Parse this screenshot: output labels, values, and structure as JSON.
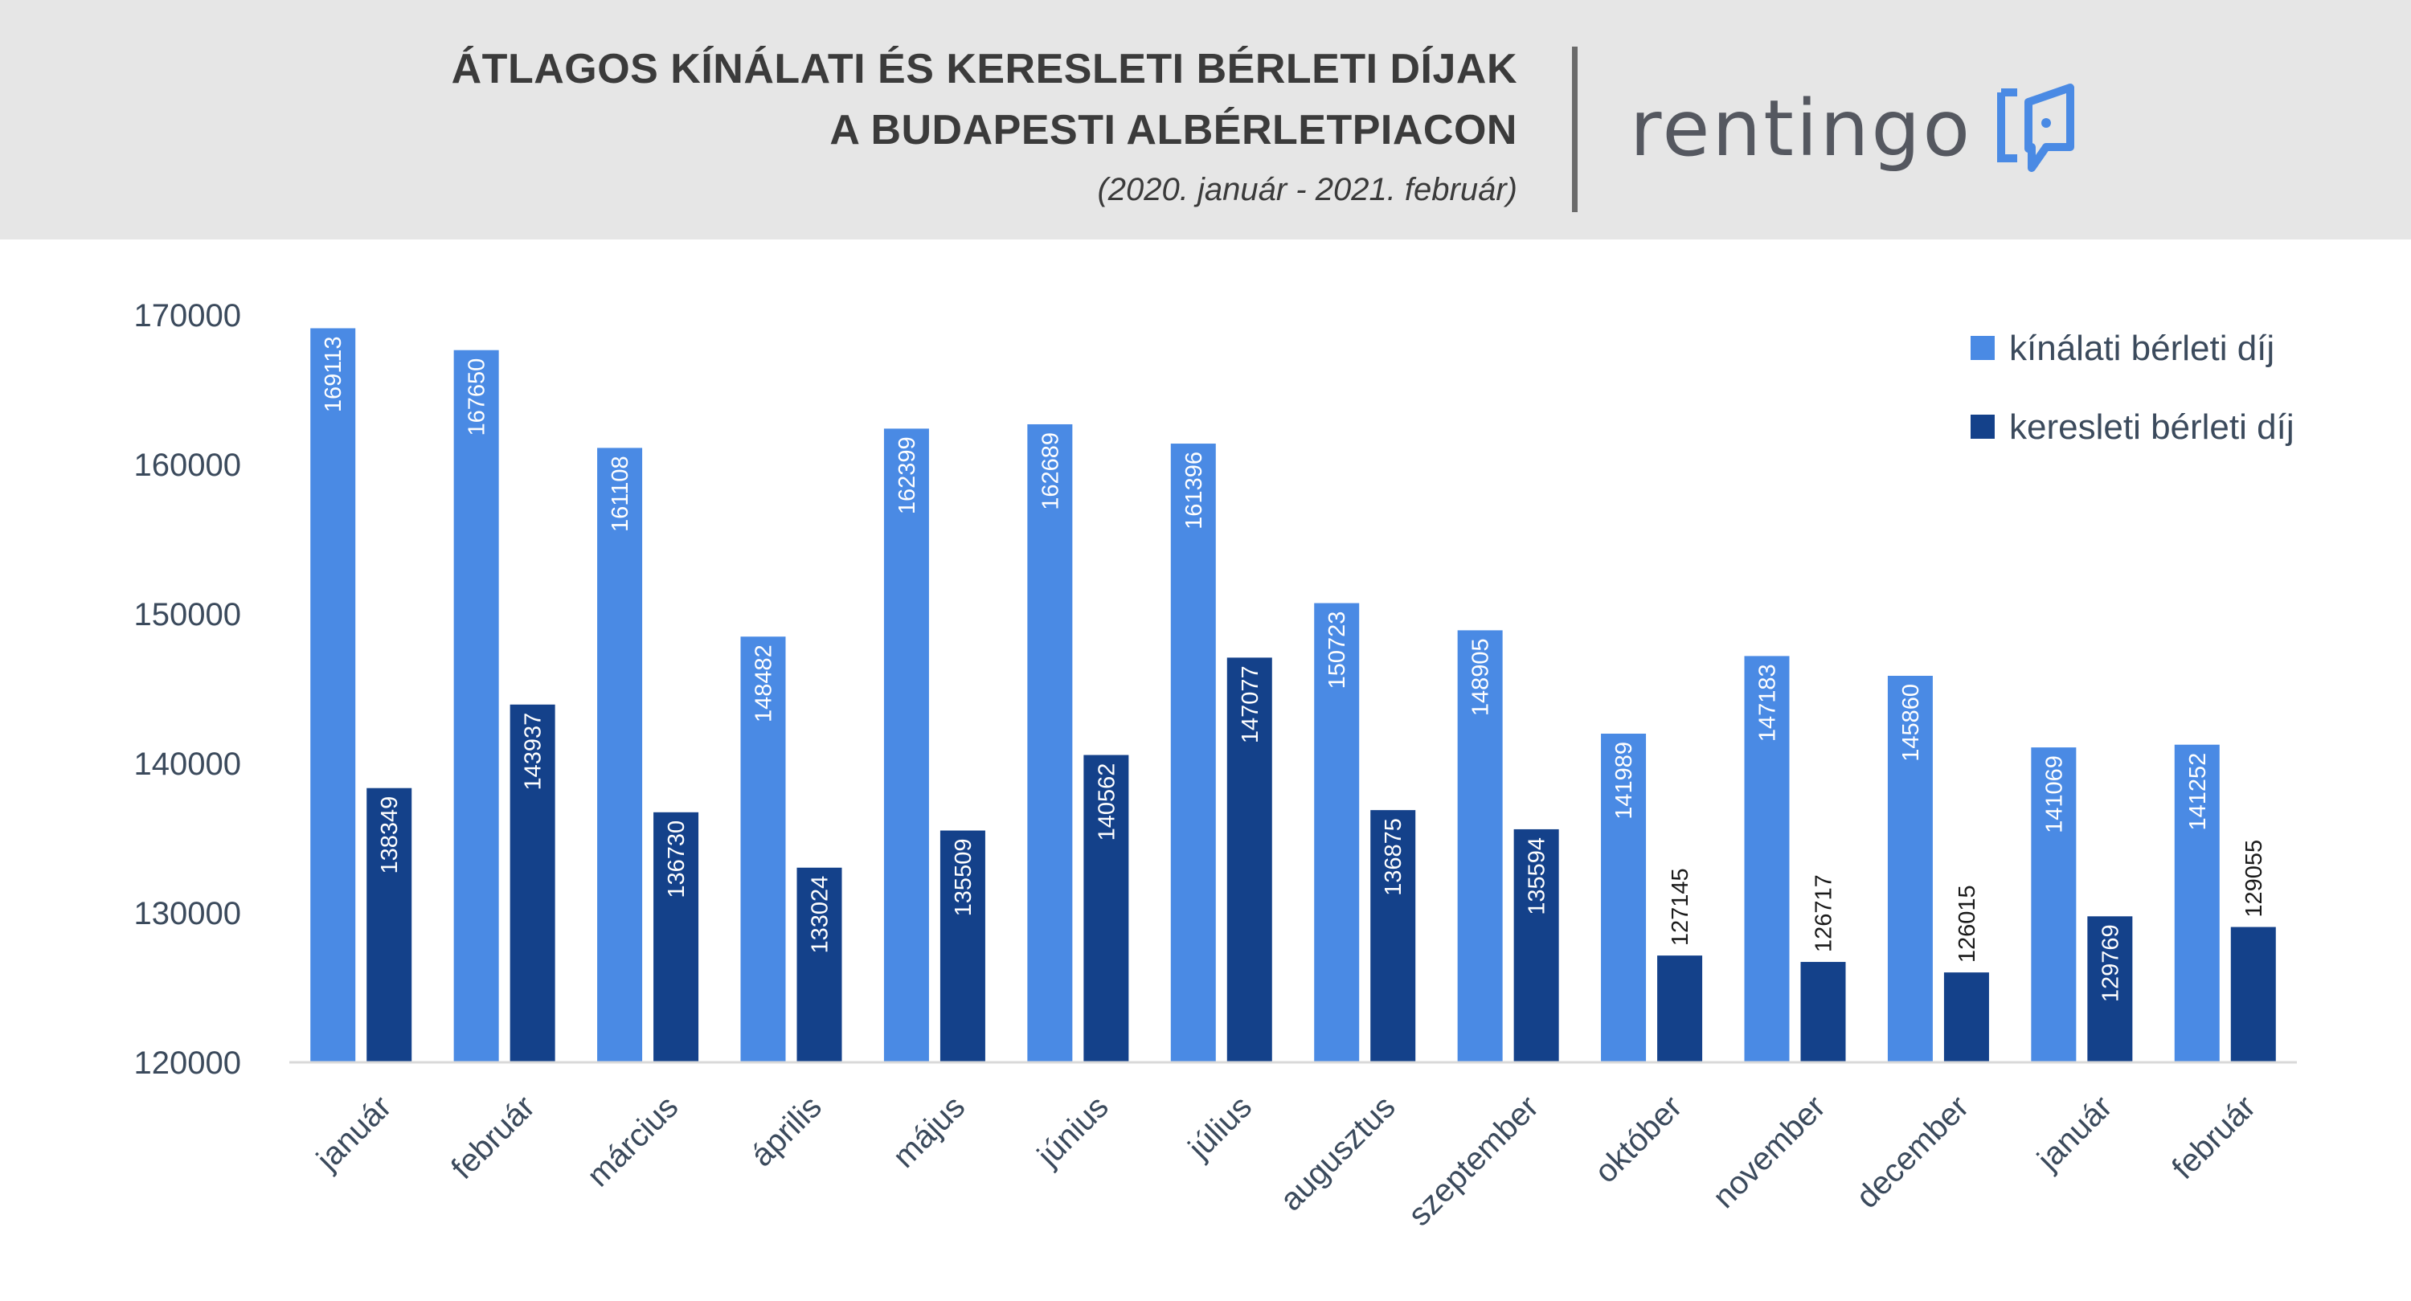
{
  "header": {
    "title_line1": "ÁTLAGOS KÍNÁLATI ÉS KERESLETI BÉRLETI DÍJAK",
    "title_line2": "A BUDAPESTI ALBÉRLETPIACON",
    "subtitle": "(2020. január - 2021. február)",
    "logo_text": "rentingo"
  },
  "chart_data": {
    "type": "bar",
    "categories": [
      "január",
      "február",
      "március",
      "április",
      "május",
      "június",
      "július",
      "augusztus",
      "szeptember",
      "október",
      "november",
      "december",
      "január",
      "február"
    ],
    "series": [
      {
        "name": "kínálati bérleti díj",
        "color": "#4a8ae4",
        "label_color": "#ffffff",
        "values": [
          169113,
          167650,
          161108,
          148482,
          162399,
          162689,
          161396,
          150723,
          148905,
          141989,
          147183,
          145860,
          141069,
          141252
        ]
      },
      {
        "name": "keresleti bérleti díj",
        "color": "#14418a",
        "label_color": "#ffffff",
        "values": [
          138349,
          143937,
          136730,
          133024,
          135509,
          140562,
          147077,
          136875,
          135594,
          127145,
          126717,
          126015,
          129769,
          129055
        ]
      }
    ],
    "ylim": [
      120000,
      170000
    ],
    "yticks": [
      120000,
      130000,
      140000,
      150000,
      160000,
      170000
    ],
    "grid": false,
    "legend_position": "top-right",
    "data_labels": true,
    "xlabel": "",
    "ylabel": ""
  }
}
